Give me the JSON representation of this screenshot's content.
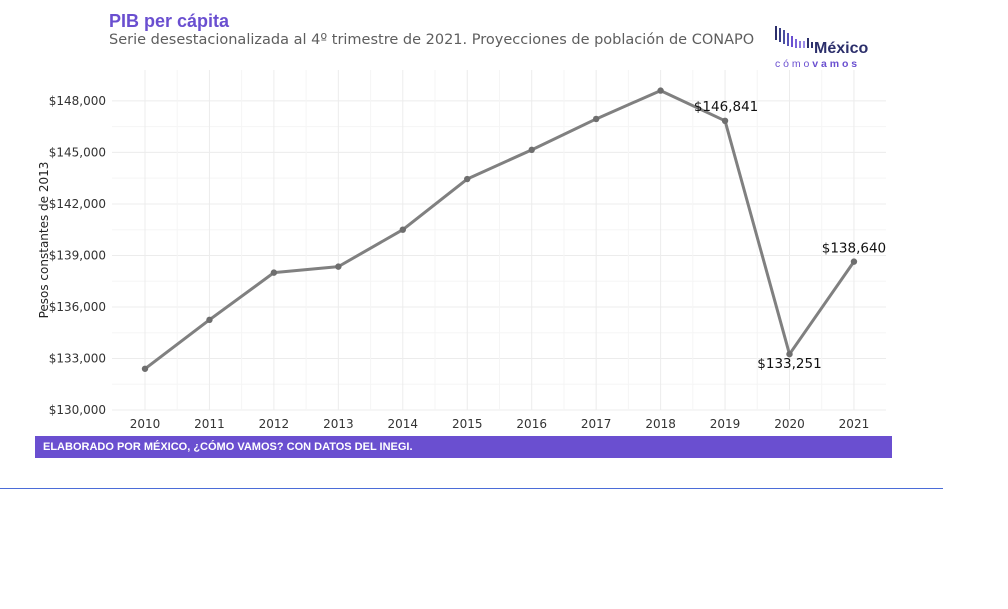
{
  "header": {
    "title": "PIB per cápita",
    "subtitle": "Serie desestacionalizada al 4º trimestre de 2021. Proyecciones de población de CONAPO"
  },
  "logo": {
    "name": "México",
    "tagline_light": "cómo",
    "tagline_bold": "vamos"
  },
  "caption": "ELABORADO POR MÉXICO, ¿CÓMO VAMOS? CON DATOS DEL INEGI.",
  "colors": {
    "accent": "#6a4fd0",
    "line": "#808080",
    "grid": "#ececec",
    "text": "#222222",
    "rule": "#4b6cd8"
  },
  "chart_data": {
    "type": "line",
    "title": "PIB per cápita",
    "subtitle": "Serie desestacionalizada al 4º trimestre de 2021. Proyecciones de población de CONAPO",
    "xlabel": "",
    "ylabel": "Pesos constantes de 2013",
    "x": [
      "2010",
      "2011",
      "2012",
      "2013",
      "2014",
      "2015",
      "2016",
      "2017",
      "2018",
      "2019",
      "2020",
      "2021"
    ],
    "series": [
      {
        "values": [
          132400,
          135250,
          138000,
          138350,
          140500,
          143450,
          145150,
          146950,
          148600,
          146841,
          133251,
          138640
        ]
      }
    ],
    "ylim": [
      130000,
      149800
    ],
    "yticks": [
      130000,
      133000,
      136000,
      139000,
      142000,
      145000,
      148000
    ],
    "ytick_labels": [
      "$130,000",
      "$133,000",
      "$136,000",
      "$139,000",
      "$142,000",
      "$145,000",
      "$148,000"
    ],
    "annotations": [
      {
        "index": 9,
        "text": "$146,841",
        "position": "above-left"
      },
      {
        "index": 10,
        "text": "$133,251",
        "position": "below"
      },
      {
        "index": 11,
        "text": "$138,640",
        "position": "above"
      }
    ],
    "grid": true,
    "legend": "none"
  }
}
